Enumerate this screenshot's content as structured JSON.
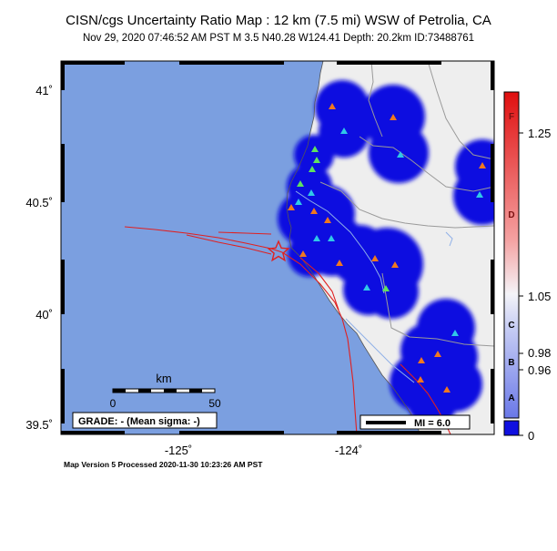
{
  "title": "CISN/cgs Uncertainty Ratio Map : 12 km (7.5 mi) WSW of Petrolia, CA",
  "subtitle": "Nov 29, 2020 07:46:52 AM PST    M 3.5    N40.28 W124.41    Depth: 20.2km    ID:73488761",
  "footer": "Map Version 5 Processed 2020-11-30 10:23:26 AM PST",
  "lat_ticks": [
    "41˚",
    "40.5˚",
    "40˚",
    "39.5˚"
  ],
  "lon_ticks": [
    "-125˚",
    "-124˚"
  ],
  "scalebar": {
    "unit": "km",
    "min": "0",
    "max": "50"
  },
  "grade_label": "GRADE: - (Mean sigma: -)",
  "mi_label": "MI = 6.0",
  "colorbar": {
    "values": [
      "1.25",
      "1.05",
      "0.98",
      "0.96",
      "0"
    ],
    "grades": [
      "F",
      "D",
      "C",
      "B",
      "A"
    ]
  },
  "colors": {
    "ocean": "#7b9fe0",
    "land": "#eeeeee",
    "blob": "#1010e0",
    "fault": "#e02020",
    "station_orange": "#f07820",
    "station_cyan": "#30c8e8",
    "station_green": "#60e060",
    "epicenter": "#e02020"
  },
  "icons": {
    "epicenter": "star-icon",
    "station": "triangle-icon"
  }
}
